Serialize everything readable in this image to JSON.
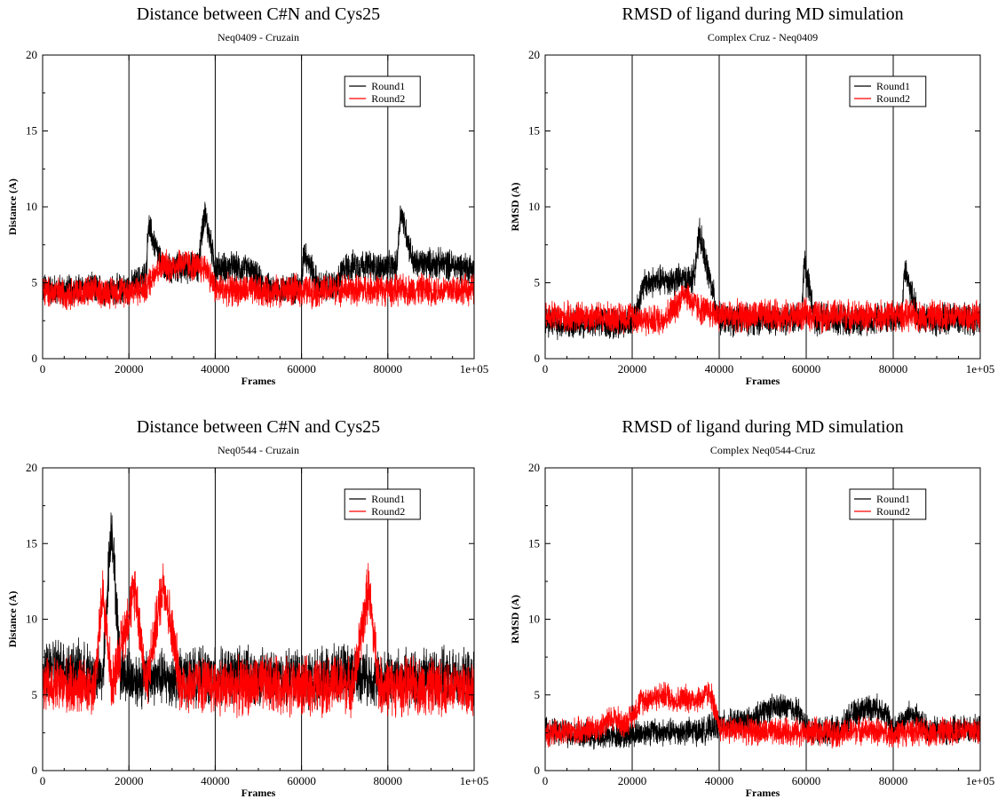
{
  "colors": {
    "round1": "#000000",
    "round2": "#ff0000",
    "grid": "#000000",
    "background": "#ffffff"
  },
  "chart_data": [
    {
      "type": "line",
      "title": "Distance between C#N and Cys25",
      "subtitle": "Neq0409 - Cruzain",
      "xlabel": "Frames",
      "ylabel": "Distance (A)",
      "xlim": [
        0,
        100000
      ],
      "ylim": [
        0,
        20
      ],
      "xticks": [
        0,
        20000,
        40000,
        60000,
        80000,
        100000
      ],
      "xtick_labels": [
        "0",
        "20000",
        "40000",
        "60000",
        "80000",
        "1e+05"
      ],
      "yticks": [
        0,
        5,
        10,
        15,
        20
      ],
      "ytick_labels": [
        "0",
        "5",
        "10",
        "15",
        "20"
      ],
      "vertical_gridlines_at": [
        20000,
        40000,
        60000,
        80000
      ],
      "legend_position": "top-right",
      "series": [
        {
          "name": "Round1",
          "color": "#000000",
          "x": [
            0,
            5000,
            10000,
            15000,
            20000,
            24000,
            24500,
            28000,
            32000,
            36000,
            37500,
            40000,
            44000,
            48000,
            52000,
            56000,
            60000,
            60500,
            64000,
            68000,
            70000,
            74000,
            78000,
            82000,
            83000,
            86000,
            90000,
            94000,
            98000,
            100000
          ],
          "y": [
            4.6,
            4.5,
            4.6,
            4.5,
            4.6,
            5.5,
            8.8,
            5.8,
            6.0,
            6.0,
            9.7,
            6.0,
            6.0,
            5.8,
            4.6,
            4.6,
            4.7,
            7.2,
            4.7,
            4.8,
            6.0,
            6.2,
            6.0,
            6.0,
            9.8,
            6.2,
            6.3,
            6.2,
            6.0,
            6.0
          ]
        },
        {
          "name": "Round2",
          "color": "#ff0000",
          "x": [
            0,
            5000,
            10000,
            15000,
            20000,
            24000,
            26000,
            28000,
            30000,
            32000,
            34000,
            36000,
            38000,
            40000,
            44000,
            48000,
            52000,
            56000,
            60000,
            64000,
            68000,
            72000,
            76000,
            80000,
            84000,
            88000,
            92000,
            96000,
            100000
          ],
          "y": [
            4.4,
            4.3,
            4.4,
            4.4,
            4.5,
            4.6,
            5.8,
            6.2,
            6.0,
            6.4,
            6.2,
            6.0,
            6.0,
            4.6,
            4.5,
            4.5,
            4.4,
            4.5,
            4.5,
            4.4,
            4.6,
            4.5,
            4.6,
            4.5,
            4.5,
            4.6,
            4.5,
            4.6,
            4.5
          ]
        }
      ]
    },
    {
      "type": "line",
      "title": "RMSD of ligand during MD simulation",
      "subtitle": "Complex Cruz - Neq0409",
      "xlabel": "Frames",
      "ylabel": "RMSD (A)",
      "xlim": [
        0,
        100000
      ],
      "ylim": [
        0,
        20
      ],
      "xticks": [
        0,
        20000,
        40000,
        60000,
        80000,
        100000
      ],
      "xtick_labels": [
        "0",
        "20000",
        "40000",
        "60000",
        "80000",
        "1e+05"
      ],
      "yticks": [
        0,
        5,
        10,
        15,
        20
      ],
      "ytick_labels": [
        "0",
        "5",
        "10",
        "15",
        "20"
      ],
      "vertical_gridlines_at": [
        20000,
        40000,
        60000,
        80000
      ],
      "legend_position": "top-right",
      "series": [
        {
          "name": "Round1",
          "color": "#000000",
          "x": [
            0,
            5000,
            10000,
            15000,
            20000,
            23000,
            26000,
            30000,
            34000,
            35500,
            38000,
            40000,
            44000,
            48000,
            52000,
            56000,
            59000,
            59500,
            62000,
            66000,
            70000,
            74000,
            78000,
            82000,
            82500,
            86000,
            90000,
            94000,
            98000,
            100000
          ],
          "y": [
            2.4,
            2.3,
            2.4,
            2.3,
            2.4,
            5.0,
            5.1,
            5.2,
            5.2,
            8.2,
            5.0,
            2.6,
            2.5,
            2.6,
            2.5,
            2.6,
            2.7,
            6.6,
            2.6,
            2.6,
            2.5,
            2.6,
            2.7,
            2.6,
            5.8,
            2.6,
            2.5,
            2.6,
            2.5,
            2.6
          ]
        },
        {
          "name": "Round2",
          "color": "#ff0000",
          "x": [
            0,
            5000,
            10000,
            15000,
            20000,
            24000,
            27000,
            30000,
            32000,
            34000,
            36000,
            40000,
            44000,
            48000,
            52000,
            56000,
            60000,
            64000,
            68000,
            72000,
            76000,
            80000,
            84000,
            88000,
            92000,
            96000,
            100000
          ],
          "y": [
            2.8,
            2.7,
            2.8,
            2.7,
            2.8,
            2.5,
            2.6,
            3.4,
            4.5,
            3.6,
            3.2,
            2.9,
            2.8,
            2.8,
            2.9,
            2.8,
            2.9,
            2.8,
            2.9,
            2.8,
            2.8,
            2.9,
            2.8,
            2.8,
            2.9,
            2.8,
            2.8
          ]
        }
      ]
    },
    {
      "type": "line",
      "title": "Distance between C#N and Cys25",
      "subtitle": "Neq0544 - Cruzain",
      "xlabel": "Frames",
      "ylabel": "Distance (A)",
      "xlim": [
        0,
        100000
      ],
      "ylim": [
        0,
        20
      ],
      "xticks": [
        0,
        20000,
        40000,
        60000,
        80000,
        100000
      ],
      "xtick_labels": [
        "0",
        "20000",
        "40000",
        "60000",
        "80000",
        "1e+05"
      ],
      "yticks": [
        0,
        5,
        10,
        15,
        20
      ],
      "ytick_labels": [
        "0",
        "5",
        "10",
        "15",
        "20"
      ],
      "vertical_gridlines_at": [
        20000,
        40000,
        60000,
        80000
      ],
      "legend_position": "top-right",
      "series": [
        {
          "name": "Round1",
          "color": "#000000",
          "x": [
            0,
            2000,
            6000,
            10000,
            14000,
            15500,
            16000,
            18000,
            22000,
            26000,
            30000,
            34000,
            38000,
            42000,
            46000,
            50000,
            54000,
            58000,
            62000,
            66000,
            70000,
            74000,
            78000,
            82000,
            86000,
            90000,
            94000,
            98000,
            100000
          ],
          "y": [
            6.0,
            7.0,
            6.8,
            6.5,
            6.2,
            14.5,
            16.3,
            6.5,
            6.0,
            6.2,
            6.0,
            6.3,
            6.1,
            6.2,
            6.4,
            6.2,
            6.0,
            6.3,
            6.0,
            6.2,
            6.5,
            6.4,
            6.0,
            6.2,
            6.0,
            6.3,
            6.1,
            6.0,
            6.0
          ]
        },
        {
          "name": "Round2",
          "color": "#ff0000",
          "x": [
            0,
            4000,
            8000,
            12000,
            14000,
            16000,
            21500,
            24000,
            28000,
            32000,
            36000,
            40000,
            44000,
            48000,
            52000,
            56000,
            60000,
            64000,
            68000,
            72000,
            75500,
            78000,
            82000,
            86000,
            90000,
            94000,
            98000,
            100000
          ],
          "y": [
            5.5,
            5.6,
            5.5,
            5.6,
            11.8,
            5.6,
            12.2,
            5.6,
            12.6,
            5.6,
            5.7,
            5.6,
            5.5,
            5.6,
            5.7,
            5.6,
            5.5,
            5.6,
            5.7,
            5.6,
            12.1,
            5.6,
            5.5,
            5.6,
            5.5,
            5.6,
            5.5,
            5.5
          ]
        }
      ]
    },
    {
      "type": "line",
      "title": "RMSD of ligand during MD simulation",
      "subtitle": "Complex Neq0544-Cruz",
      "xlabel": "Frames",
      "ylabel": "RMSD (A)",
      "xlim": [
        0,
        100000
      ],
      "ylim": [
        0,
        20
      ],
      "xticks": [
        0,
        20000,
        40000,
        60000,
        80000,
        100000
      ],
      "xtick_labels": [
        "0",
        "20000",
        "40000",
        "60000",
        "80000",
        "1e+05"
      ],
      "yticks": [
        0,
        5,
        10,
        15,
        20
      ],
      "ytick_labels": [
        "0",
        "5",
        "10",
        "15",
        "20"
      ],
      "vertical_gridlines_at": [
        20000,
        40000,
        60000,
        80000
      ],
      "legend_position": "top-right",
      "series": [
        {
          "name": "Round1",
          "color": "#000000",
          "x": [
            0,
            4000,
            8000,
            12000,
            16000,
            18000,
            20000,
            24000,
            28000,
            32000,
            36000,
            40000,
            44000,
            48000,
            50000,
            54000,
            58000,
            60000,
            64000,
            68000,
            70000,
            74000,
            78000,
            80000,
            84000,
            88000,
            92000,
            96000,
            100000
          ],
          "y": [
            2.6,
            2.5,
            2.4,
            2.3,
            2.3,
            2.4,
            2.4,
            2.6,
            2.5,
            2.6,
            2.6,
            3.0,
            3.2,
            3.3,
            4.0,
            4.2,
            4.0,
            2.8,
            2.6,
            2.7,
            3.6,
            4.2,
            4.0,
            2.6,
            3.8,
            2.7,
            2.6,
            2.7,
            2.7
          ]
        },
        {
          "name": "Round2",
          "color": "#ff0000",
          "x": [
            0,
            4000,
            8000,
            12000,
            14000,
            16000,
            18000,
            20000,
            22000,
            24000,
            26000,
            28000,
            30000,
            32000,
            34000,
            36000,
            38000,
            40000,
            44000,
            48000,
            52000,
            56000,
            60000,
            64000,
            68000,
            72000,
            76000,
            80000,
            84000,
            88000,
            92000,
            96000,
            100000
          ],
          "y": [
            2.4,
            2.5,
            2.6,
            2.8,
            3.2,
            3.5,
            3.0,
            3.6,
            4.6,
            4.8,
            4.9,
            5.0,
            4.6,
            4.8,
            4.7,
            4.8,
            5.2,
            2.8,
            2.7,
            2.6,
            2.5,
            2.6,
            2.5,
            2.6,
            2.4,
            2.7,
            2.6,
            2.4,
            2.6,
            2.5,
            2.6,
            2.7,
            2.6
          ]
        }
      ]
    }
  ]
}
